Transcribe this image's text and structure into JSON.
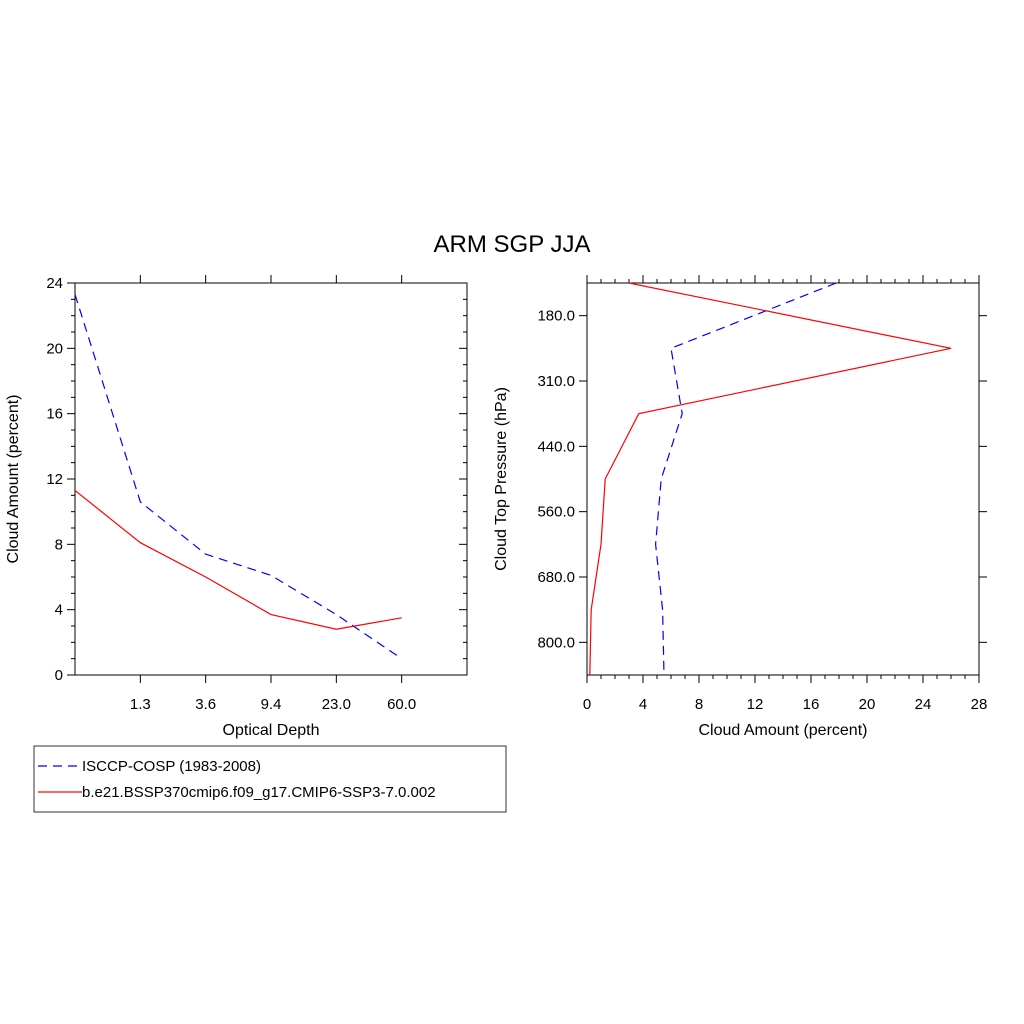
{
  "chart_data": {
    "title": "ARM SGP JJA",
    "colors": {
      "obs": "#0000ff",
      "model": "#ff0000"
    },
    "legend": {
      "placement": "bottom-left",
      "entries": [
        {
          "label": "ISCCP-COSP (1983-2008)",
          "color": "#0000ff",
          "dash": true
        },
        {
          "label": "b.e21.BSSP370cmip6.f09_g17.CMIP6-SSP3-7.0.002",
          "color": "#ff0000",
          "dash": false
        }
      ]
    },
    "panels": [
      {
        "type": "line",
        "xlabel": "Optical Depth",
        "ylabel": "Cloud Amount (percent)",
        "x_tick_labels": [
          "1.3",
          "3.6",
          "9.4",
          "23.0",
          "60.0"
        ],
        "x_bin_index": [
          0,
          1,
          2,
          3,
          4,
          5,
          6
        ],
        "ylim": [
          0,
          24
        ],
        "y_ticks": [
          0,
          4,
          8,
          12,
          16,
          20,
          24
        ],
        "series": [
          {
            "name": "ISCCP-COSP (1983-2008)",
            "color": "#0000ff",
            "dash": true,
            "values": [
              23.3,
              10.6,
              7.4,
              6.1,
              3.7,
              1.0
            ]
          },
          {
            "name": "b.e21.BSSP370cmip6.f09_g17.CMIP6-SSP3-7.0.002",
            "color": "#ff0000",
            "dash": false,
            "values": [
              11.3,
              8.1,
              6.0,
              3.7,
              2.8,
              3.5
            ]
          }
        ]
      },
      {
        "type": "line",
        "xlabel": "Cloud Amount (percent)",
        "ylabel": "Cloud Top Pressure (hPa)",
        "xlim": [
          0,
          28
        ],
        "x_ticks": [
          0,
          4,
          8,
          12,
          16,
          20,
          24,
          28
        ],
        "y_tick_labels": [
          "180.0",
          "310.0",
          "440.0",
          "560.0",
          "680.0",
          "800.0"
        ],
        "series": [
          {
            "name": "ISCCP-COSP (1983-2008)",
            "color": "#0000ff",
            "dash": true,
            "values": [
              17.8,
              6.0,
              6.8,
              5.3,
              4.9,
              5.4,
              5.5
            ]
          },
          {
            "name": "b.e21.BSSP370cmip6.f09_g17.CMIP6-SSP3-7.0.002",
            "color": "#ff0000",
            "dash": false,
            "values": [
              3.0,
              26.0,
              3.7,
              1.3,
              1.0,
              0.3,
              0.2
            ]
          }
        ]
      }
    ]
  }
}
